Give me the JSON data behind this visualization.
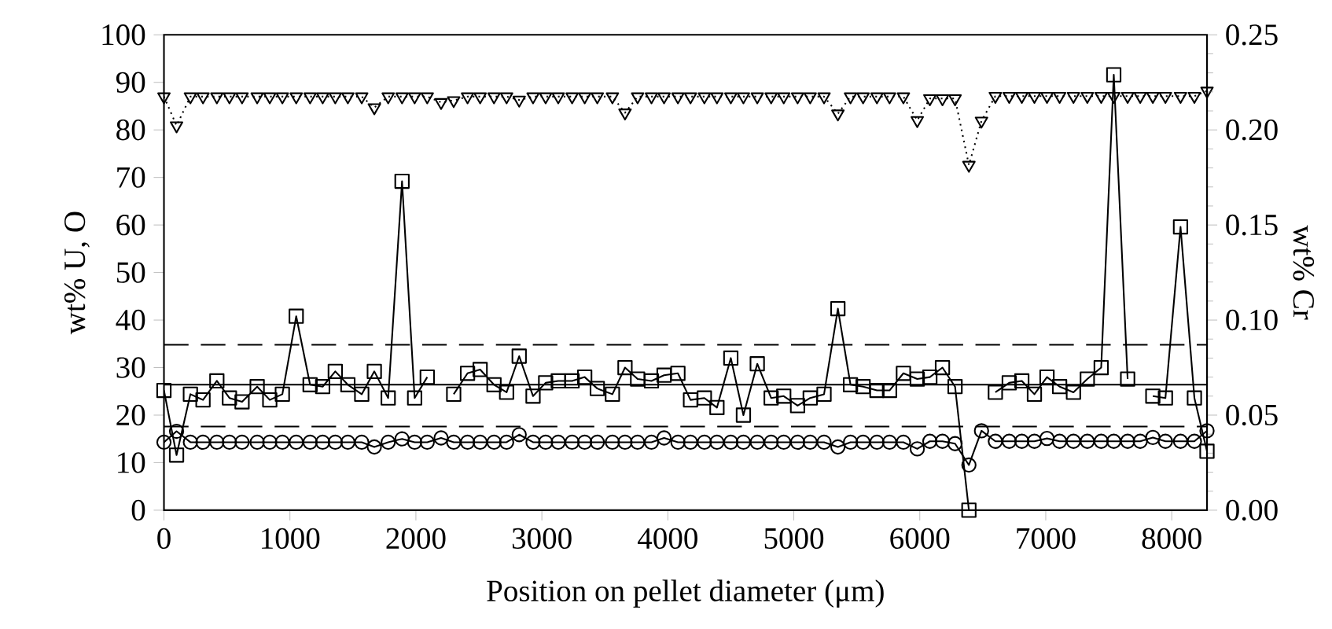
{
  "chart_data": {
    "type": "line",
    "xlabel": "Position on pellet diameter (μm)",
    "ylabel": "wt% U, O",
    "y2label": "wt% Cr",
    "x": [
      0,
      100,
      210,
      310,
      420,
      520,
      620,
      740,
      840,
      940,
      1050,
      1160,
      1260,
      1360,
      1460,
      1570,
      1670,
      1780,
      1890,
      1990,
      2090,
      2200,
      2300,
      2410,
      2510,
      2620,
      2720,
      2820,
      2930,
      3030,
      3130,
      3240,
      3340,
      3440,
      3560,
      3660,
      3760,
      3870,
      3970,
      4080,
      4180,
      4290,
      4390,
      4500,
      4600,
      4710,
      4820,
      4920,
      5030,
      5130,
      5240,
      5350,
      5450,
      5550,
      5660,
      5760,
      5870,
      5980,
      6080,
      6180,
      6280,
      6390,
      6490,
      6600,
      6710,
      6810,
      6910,
      7010,
      7110,
      7220,
      7330,
      7440,
      7540,
      7650,
      7750,
      7850,
      7950,
      8070,
      8180,
      8280
    ],
    "series": [
      {
        "color": "#000000",
        "marker": "triangle",
        "line_style": "dotted",
        "values": [
          87,
          80.9,
          87,
          87,
          87,
          87,
          87,
          87,
          87,
          87,
          87,
          87,
          87,
          87,
          87,
          87,
          84.7,
          87,
          87,
          87,
          87,
          85.8,
          86.2,
          87,
          87,
          87,
          87,
          86.3,
          87,
          87,
          87,
          87,
          87,
          87,
          87,
          83.6,
          87,
          87,
          87,
          87,
          87,
          87,
          87,
          87,
          87,
          87,
          87,
          87,
          87,
          87,
          87,
          83.4,
          87,
          87,
          87,
          87,
          87,
          82.0,
          86.6,
          86.6,
          86.6,
          72.6,
          81.9,
          87.1,
          87.1,
          87.1,
          87.1,
          87.1,
          87.1,
          87.1,
          87.1,
          87.1,
          87.1,
          87.1,
          87.1,
          87.1,
          87.1,
          87.1,
          87.1,
          88.2
        ]
      },
      {
        "color": "#000000",
        "marker": "circle",
        "line_style": "solid",
        "values": [
          14.3,
          16.6,
          14.3,
          14.3,
          14.3,
          14.3,
          14.3,
          14.3,
          14.3,
          14.3,
          14.3,
          14.3,
          14.3,
          14.3,
          14.3,
          14.3,
          13.3,
          14.3,
          15.0,
          14.3,
          14.3,
          15.2,
          14.3,
          14.3,
          14.3,
          14.3,
          14.3,
          15.9,
          14.3,
          14.3,
          14.3,
          14.3,
          14.3,
          14.3,
          14.3,
          14.3,
          14.3,
          14.3,
          15.2,
          14.3,
          14.3,
          14.3,
          14.3,
          14.3,
          14.3,
          14.3,
          14.3,
          14.3,
          14.3,
          14.3,
          14.3,
          13.3,
          14.3,
          14.3,
          14.3,
          14.3,
          14.3,
          12.9,
          14.5,
          14.5,
          14.0,
          9.5,
          16.7,
          14.5,
          14.5,
          14.5,
          14.5,
          15.1,
          14.5,
          14.5,
          14.5,
          14.5,
          14.5,
          14.5,
          14.5,
          15.3,
          14.5,
          14.5,
          14.5,
          16.7
        ]
      },
      {
        "color": "#000000",
        "marker": "square",
        "line_style": "solid",
        "axis": "y2",
        "values": [
          0.063,
          0.029,
          0.061,
          0.058,
          0.068,
          0.059,
          0.057,
          0.065,
          0.058,
          0.061,
          0.102,
          0.066,
          0.065,
          0.073,
          0.066,
          0.061,
          0.073,
          0.059,
          0.173,
          0.059,
          0.07,
          null,
          0.061,
          0.072,
          0.074,
          0.066,
          0.062,
          0.081,
          0.06,
          0.067,
          0.068,
          0.068,
          0.07,
          0.064,
          0.061,
          0.075,
          0.069,
          0.068,
          0.071,
          0.072,
          0.058,
          0.059,
          0.054,
          0.08,
          0.05,
          0.077,
          0.059,
          0.06,
          0.055,
          0.059,
          0.061,
          0.106,
          0.066,
          0.065,
          0.063,
          0.063,
          0.072,
          0.069,
          0.07,
          0.075,
          0.065,
          0.0,
          null,
          0.062,
          0.067,
          0.068,
          0.061,
          0.07,
          0.065,
          0.062,
          0.069,
          0.075,
          0.229,
          0.069,
          null,
          0.06,
          0.059,
          0.149,
          0.059,
          0.031
        ]
      }
    ],
    "xlim": [
      0,
      8280
    ],
    "xticks": [
      0,
      1000,
      2000,
      3000,
      4000,
      5000,
      6000,
      7000,
      8000
    ],
    "ylim": [
      0,
      100
    ],
    "yticks": [
      0,
      10,
      20,
      30,
      40,
      50,
      60,
      70,
      80,
      90,
      100
    ],
    "y2lim": [
      0,
      0.25
    ],
    "y2ticks": [
      {
        "value": 0,
        "label": "0.00"
      },
      {
        "value": 0.05,
        "label": "0.05"
      },
      {
        "value": 0.1,
        "label": "0.10"
      },
      {
        "value": 0.15,
        "label": "0.15"
      },
      {
        "value": 0.2,
        "label": "0.20"
      },
      {
        "value": 0.25,
        "label": "0.25"
      }
    ],
    "ref_lines": [
      {
        "axis": "y2",
        "value": 0.066,
        "line_style": "solid",
        "color": "#000000"
      },
      {
        "axis": "y2",
        "value": 0.087,
        "line_style": "dashed",
        "color": "#000000"
      },
      {
        "axis": "y2",
        "value": 0.044,
        "line_style": "dashed",
        "color": "#000000"
      }
    ],
    "grid": false
  }
}
